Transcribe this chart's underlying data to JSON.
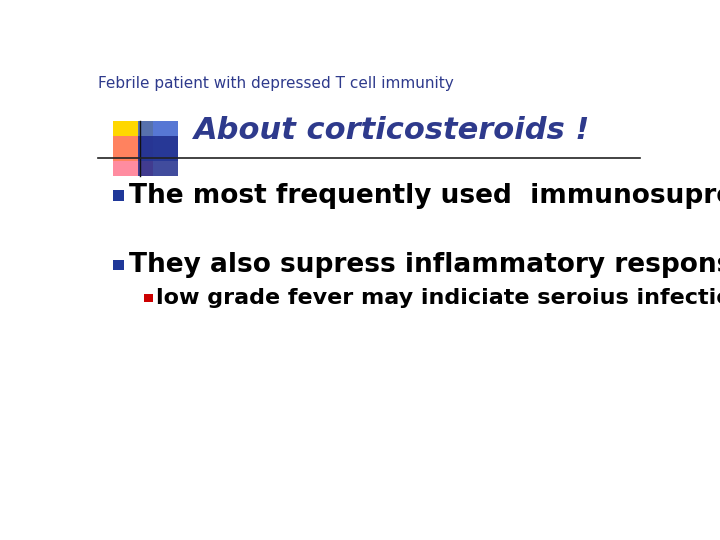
{
  "background_color": "#ffffff",
  "slide_title": "Febrile patient with depressed T cell immunity",
  "slide_title_color": "#2E3A8C",
  "slide_title_fontsize": 11,
  "header_title": "About corticosteroids !",
  "header_title_color": "#2E3A8C",
  "header_title_fontsize": 22,
  "header_line_color": "#222222",
  "bullet1": "The most frequently used  immunosupression",
  "bullet2": "They also supress inflammatory response",
  "sub_bullet": "low grade fever may indiciate seroius infection",
  "bullet_color": "#000000",
  "bullet1_fontsize": 19,
  "bullet2_fontsize": 19,
  "sub_bullet_fontsize": 16,
  "bullet_square_color": "#1F3899",
  "sub_bullet_square_color": "#cc0000",
  "logo_yellow": "#FFD700",
  "logo_blue_top": "#3A5FCD",
  "logo_pink": "#FF6680",
  "logo_blue_bottom": "#1F2D8C",
  "logo_line_color": "#111111"
}
